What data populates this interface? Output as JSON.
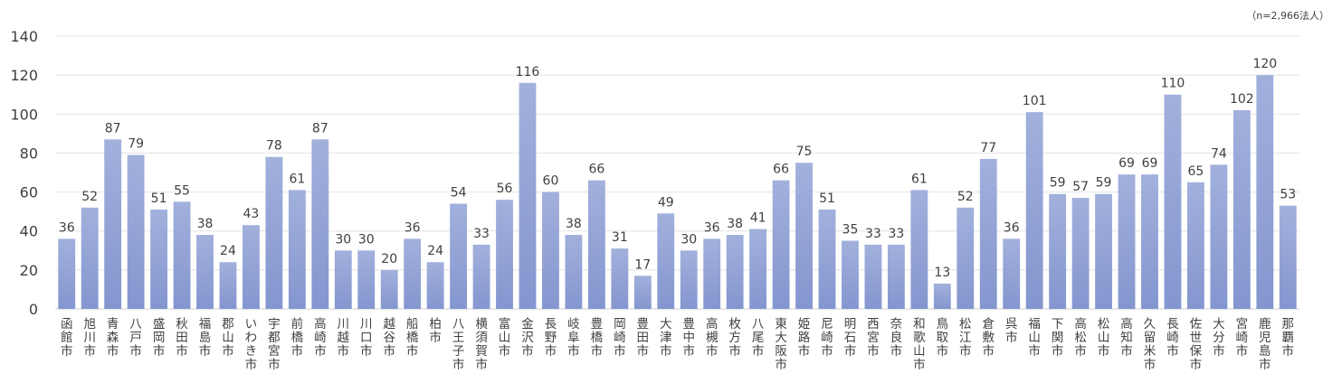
{
  "note": "（n=2,966法人）",
  "chart_data": {
    "type": "bar",
    "title": "",
    "xlabel": "",
    "ylabel": "",
    "ylim": [
      0,
      140
    ],
    "yticks": [
      0,
      20,
      40,
      60,
      80,
      100,
      120,
      140
    ],
    "grid": true,
    "bar_color": "#8496CF",
    "bar_color_light": "#A2B0DC",
    "categories": [
      "函館市",
      "旭川市",
      "青森市",
      "八戸市",
      "盛岡市",
      "秋田市",
      "福島市",
      "郡山市",
      "いわき市",
      "宇都宮市",
      "前橋市",
      "高崎市",
      "川越市",
      "川口市",
      "越谷市",
      "船橋市",
      "柏市",
      "八王子市",
      "横須賀市",
      "富山市",
      "金沢市",
      "長野市",
      "岐阜市",
      "豊橋市",
      "岡崎市",
      "豊田市",
      "大津市",
      "豊中市",
      "高槻市",
      "枚方市",
      "八尾市",
      "東大阪市",
      "姫路市",
      "尼崎市",
      "明石市",
      "西宮市",
      "奈良市",
      "和歌山市",
      "鳥取市",
      "松江市",
      "倉敷市",
      "呉市",
      "福山市",
      "下関市",
      "高松市",
      "松山市",
      "高知市",
      "久留米市",
      "長崎市",
      "佐世保市",
      "大分市",
      "宮崎市",
      "鹿児島市",
      "那覇市"
    ],
    "values": [
      36,
      52,
      87,
      79,
      51,
      55,
      38,
      24,
      43,
      78,
      61,
      87,
      30,
      30,
      20,
      36,
      24,
      54,
      33,
      56,
      116,
      60,
      38,
      66,
      31,
      17,
      49,
      30,
      36,
      38,
      41,
      66,
      75,
      51,
      35,
      33,
      33,
      61,
      13,
      52,
      77,
      36,
      101,
      59,
      57,
      59,
      69,
      69,
      110,
      65,
      74,
      102,
      120,
      53
    ]
  }
}
